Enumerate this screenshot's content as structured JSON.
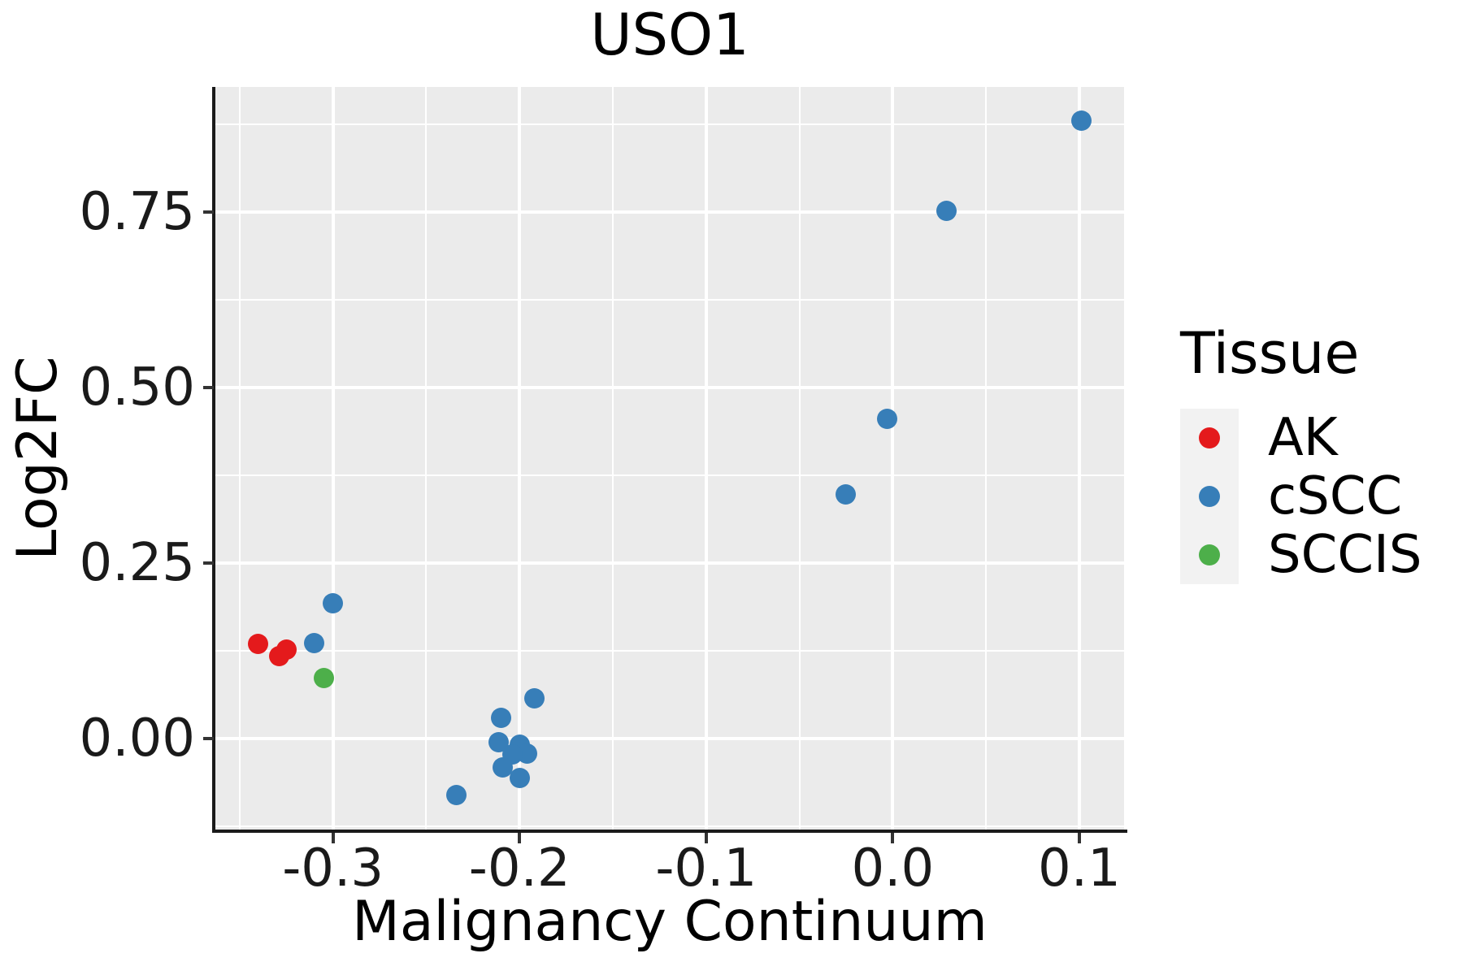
{
  "chart_data": {
    "type": "scatter",
    "title": "USO1",
    "xlabel": "Malignancy Continuum",
    "ylabel": "Log2FC",
    "xlim": [
      -0.363,
      0.124
    ],
    "ylim": [
      -0.13,
      0.928
    ],
    "grid": true,
    "panel_background": "#ebebeb",
    "gridline_color": "#ffffff",
    "x_ticks": [
      -0.3,
      -0.2,
      -0.1,
      0.0,
      0.1
    ],
    "x_tick_labels": [
      "-0.3",
      "-0.2",
      "-0.1",
      "0.0",
      "0.1"
    ],
    "x_minor_ticks": [
      -0.35,
      -0.25,
      -0.15,
      -0.05,
      0.05
    ],
    "y_ticks": [
      0.0,
      0.25,
      0.5,
      0.75
    ],
    "y_tick_labels": [
      "0.00",
      "0.25",
      "0.50",
      "0.75"
    ],
    "y_minor_ticks": [
      -0.125,
      0.125,
      0.375,
      0.625,
      0.875
    ],
    "legend_position": "right",
    "series": [
      {
        "name": "AK",
        "color": "#E41A1C",
        "points": [
          [
            -0.34,
            0.135
          ],
          [
            -0.329,
            0.117
          ],
          [
            -0.325,
            0.126
          ]
        ]
      },
      {
        "name": "cSCC",
        "color": "#377EB8",
        "points": [
          [
            -0.3,
            0.192
          ],
          [
            -0.31,
            0.136
          ],
          [
            -0.192,
            0.057
          ],
          [
            -0.21,
            0.029
          ],
          [
            -0.211,
            -0.006
          ],
          [
            -0.2,
            -0.009
          ],
          [
            -0.196,
            -0.022
          ],
          [
            -0.204,
            -0.023
          ],
          [
            -0.209,
            -0.041
          ],
          [
            -0.2,
            -0.057
          ],
          [
            -0.234,
            -0.081
          ],
          [
            -0.003,
            0.455
          ],
          [
            -0.025,
            0.347
          ],
          [
            0.029,
            0.751
          ],
          [
            0.101,
            0.88
          ]
        ]
      },
      {
        "name": "SCCIS",
        "color": "#4DAF4A",
        "points": [
          [
            -0.305,
            0.086
          ]
        ]
      }
    ]
  },
  "legend": {
    "title": "Tissue",
    "items": [
      {
        "label": "AK",
        "color": "#E41A1C"
      },
      {
        "label": "cSCC",
        "color": "#377EB8"
      },
      {
        "label": "SCCIS",
        "color": "#4DAF4A"
      }
    ]
  }
}
